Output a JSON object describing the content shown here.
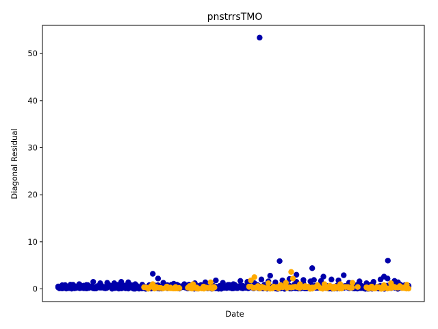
{
  "chart_data": {
    "type": "scatter",
    "title": "pnstrrsTMO",
    "xlabel": "Date",
    "ylabel": "Diagonal Residual",
    "ylim": [
      -2.7,
      56.0
    ],
    "xlim": [
      -0.045,
      1.045
    ],
    "x_ticks_shown": false,
    "yticks": [
      0,
      10,
      20,
      30,
      40,
      50
    ],
    "ytick_labels": [
      "0",
      "10",
      "20",
      "30",
      "40",
      "50"
    ],
    "grid": false,
    "legend": "none",
    "colors": {
      "series_a": "#0000aa",
      "series_b": "#ffaa00"
    },
    "series": [
      {
        "name": "series_a",
        "color": "#0000aa",
        "x": [
          0.0,
          0.02,
          0.035,
          0.06,
          0.08,
          0.1,
          0.12,
          0.14,
          0.16,
          0.18,
          0.2,
          0.22,
          0.24,
          0.26,
          0.27,
          0.285,
          0.3,
          0.33,
          0.36,
          0.39,
          0.42,
          0.45,
          0.47,
          0.5,
          0.52,
          0.54,
          0.56,
          0.58,
          0.6,
          0.62,
          0.64,
          0.66,
          0.68,
          0.7,
          0.72,
          0.73,
          0.75,
          0.78,
          0.8,
          0.83,
          0.86,
          0.88,
          0.9,
          0.92,
          0.94,
          0.96,
          0.97,
          0.99,
          0.575,
          0.632,
          0.605,
          0.725,
          0.941,
          0.815,
          0.757,
          0.68,
          0.7,
          0.93
        ],
        "y": [
          0.4,
          0.8,
          0.9,
          1.0,
          0.7,
          1.5,
          1.2,
          1.3,
          1.2,
          1.5,
          1.4,
          1.0,
          0.9,
          0.8,
          3.2,
          2.2,
          1.3,
          1.1,
          1.0,
          1.2,
          1.4,
          1.8,
          1.3,
          1.0,
          1.7,
          1.5,
          1.2,
          2.0,
          1.6,
          1.4,
          1.8,
          2.1,
          1.5,
          1.2,
          1.6,
          1.9,
          1.7,
          2.0,
          1.8,
          1.3,
          1.6,
          1.2,
          1.5,
          2.0,
          2.2,
          1.7,
          1.4,
          0.8,
          53.4,
          5.9,
          2.8,
          4.4,
          6.0,
          2.9,
          2.6,
          3.0,
          1.9,
          2.6
        ]
      },
      {
        "name": "series_b",
        "color": "#ffaa00",
        "x": [
          0.25,
          0.265,
          0.27,
          0.28,
          0.29,
          0.31,
          0.32,
          0.335,
          0.345,
          0.375,
          0.385,
          0.395,
          0.415,
          0.425,
          0.435,
          0.445,
          0.545,
          0.55,
          0.56,
          0.57,
          0.585,
          0.6,
          0.615,
          0.625,
          0.635,
          0.65,
          0.665,
          0.67,
          0.685,
          0.69,
          0.705,
          0.725,
          0.74,
          0.76,
          0.775,
          0.79,
          0.805,
          0.82,
          0.83,
          0.84,
          0.855,
          0.88,
          0.895,
          0.91,
          0.93,
          0.95,
          0.96,
          0.975,
          0.985,
          0.995
        ],
        "y": [
          0.3,
          0.6,
          1.0,
          0.4,
          0.2,
          0.5,
          0.3,
          0.4,
          0.2,
          0.6,
          1.0,
          0.3,
          0.5,
          0.2,
          1.4,
          0.4,
          0.5,
          1.8,
          2.5,
          0.6,
          0.3,
          1.2,
          0.5,
          0.4,
          0.8,
          1.3,
          3.6,
          2.2,
          0.4,
          1.0,
          0.6,
          0.3,
          0.8,
          1.0,
          0.7,
          0.5,
          1.0,
          0.4,
          0.3,
          1.3,
          0.4,
          0.3,
          0.5,
          0.3,
          0.8,
          1.2,
          0.4,
          0.6,
          0.3,
          0.9
        ]
      }
    ]
  }
}
